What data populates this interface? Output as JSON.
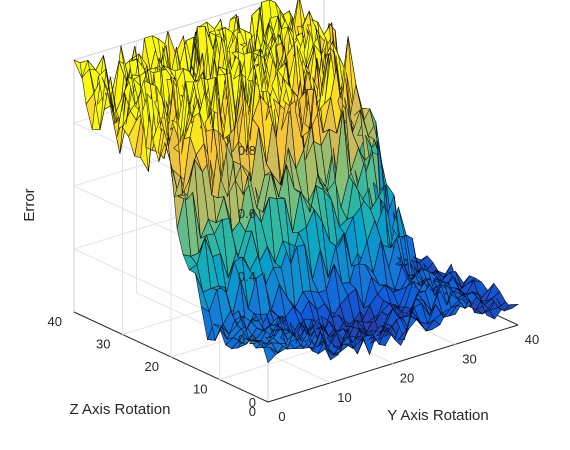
{
  "chart_data": {
    "type": "surface",
    "title": "",
    "xlabel": "Y Axis Rotation",
    "ylabel": "Z Axis Rotation",
    "zlabel": "Error",
    "xlim": [
      0,
      40
    ],
    "ylim": [
      0,
      40
    ],
    "zlim": [
      0,
      0.8
    ],
    "x_ticks": [
      "0",
      "10",
      "20",
      "30",
      "40"
    ],
    "y_ticks": [
      "0",
      "10",
      "20",
      "30",
      "40"
    ],
    "z_ticks": [
      "0",
      "0.2",
      "0.4",
      "0.6",
      "0.8"
    ],
    "grid": true,
    "colormap": "parula",
    "colormap_colors": [
      "#352a87",
      "#0f5cdd",
      "#1481d6",
      "#06a4ca",
      "#2eb7a4",
      "#87bf77",
      "#d1bb59",
      "#fec832",
      "#f9fb0e"
    ],
    "grid_size": [
      33,
      33
    ],
    "surface_description": "Noisy error surface over 33x33 rotation grid; low error (~0.0-0.2) along a band near Y≈12-30, Z≈3-25 and near the front edge, high spiky error (~0.4-0.8) across the back half of the grid",
    "z_samples": [
      {
        "x": 0,
        "y": 40,
        "z": 0.12
      },
      {
        "x": 0,
        "y": 20,
        "z": 0.1
      },
      {
        "x": 0,
        "y": 0,
        "z": 0.5
      },
      {
        "x": 15,
        "y": 10,
        "z": 0.05
      },
      {
        "x": 20,
        "y": 5,
        "z": 0.08
      },
      {
        "x": 25,
        "y": 15,
        "z": 0.1
      },
      {
        "x": 10,
        "y": 30,
        "z": 0.6
      },
      {
        "x": 20,
        "y": 32,
        "z": 0.72
      },
      {
        "x": 30,
        "y": 30,
        "z": 0.65
      },
      {
        "x": 35,
        "y": 20,
        "z": 0.45
      },
      {
        "x": 40,
        "y": 10,
        "z": 0.05
      },
      {
        "x": 40,
        "y": 0,
        "z": 0.05
      }
    ]
  }
}
